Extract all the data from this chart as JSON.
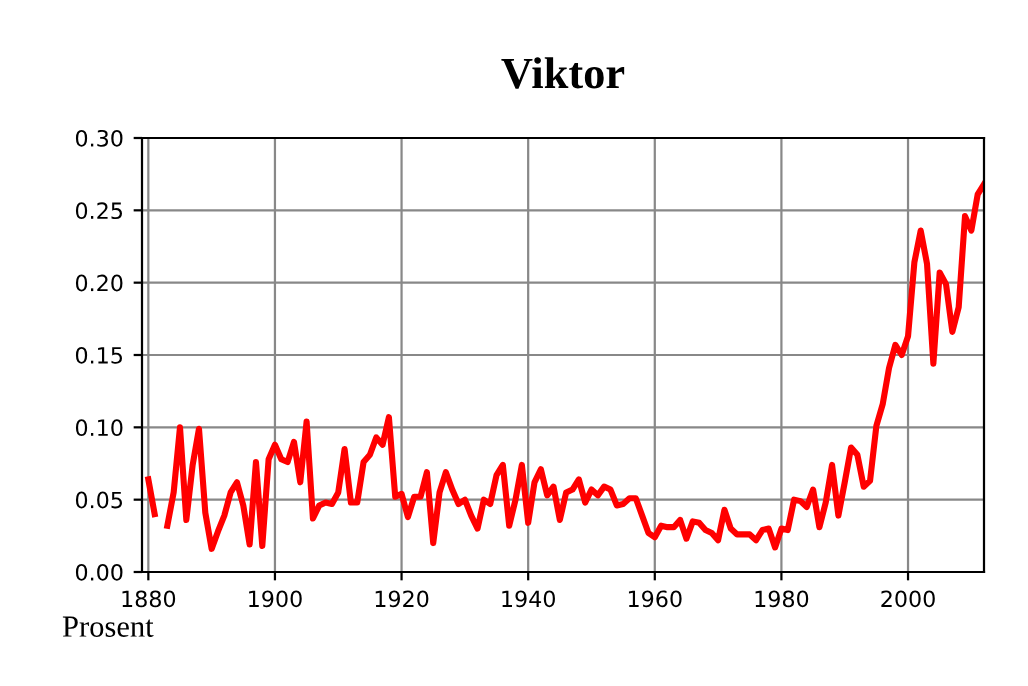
{
  "chart_data": {
    "type": "line",
    "title": "Viktor",
    "ylabel": "Prosent",
    "x": [
      1880,
      1881,
      1882,
      1883,
      1884,
      1885,
      1886,
      1887,
      1888,
      1889,
      1890,
      1891,
      1892,
      1893,
      1894,
      1895,
      1896,
      1897,
      1898,
      1899,
      1900,
      1901,
      1902,
      1903,
      1904,
      1905,
      1906,
      1907,
      1908,
      1909,
      1910,
      1911,
      1912,
      1913,
      1914,
      1915,
      1916,
      1917,
      1918,
      1919,
      1920,
      1921,
      1922,
      1923,
      1924,
      1925,
      1926,
      1927,
      1928,
      1929,
      1930,
      1931,
      1932,
      1933,
      1934,
      1935,
      1936,
      1937,
      1938,
      1939,
      1940,
      1941,
      1942,
      1943,
      1944,
      1945,
      1946,
      1947,
      1948,
      1949,
      1950,
      1951,
      1952,
      1953,
      1954,
      1955,
      1956,
      1957,
      1958,
      1959,
      1960,
      1961,
      1962,
      1963,
      1964,
      1965,
      1966,
      1967,
      1968,
      1969,
      1970,
      1971,
      1972,
      1973,
      1974,
      1975,
      1976,
      1977,
      1978,
      1979,
      1980,
      1981,
      1982,
      1983,
      1984,
      1985,
      1986,
      1987,
      1988,
      1989,
      1990,
      1991,
      1992,
      1993,
      1994,
      1995,
      1996,
      1997,
      1998,
      1999,
      2000,
      2001,
      2002,
      2003,
      2004,
      2005,
      2006,
      2007,
      2008,
      2009,
      2010,
      2011,
      2012
    ],
    "series": [
      {
        "color": "#ff0000",
        "values": [
          0.064,
          0.04,
          null,
          0.032,
          0.055,
          0.1,
          0.036,
          0.074,
          0.099,
          0.041,
          0.016,
          0.028,
          0.039,
          0.055,
          0.062,
          0.046,
          0.019,
          0.076,
          0.018,
          0.078,
          0.088,
          0.078,
          0.076,
          0.09,
          0.062,
          0.104,
          0.037,
          0.046,
          0.048,
          0.047,
          0.055,
          0.085,
          0.048,
          0.048,
          0.076,
          0.081,
          0.093,
          0.088,
          0.107,
          0.052,
          0.054,
          0.038,
          0.052,
          0.052,
          0.069,
          0.02,
          0.055,
          0.069,
          0.057,
          0.047,
          0.05,
          0.039,
          0.03,
          0.05,
          0.047,
          0.067,
          0.074,
          0.032,
          0.05,
          0.074,
          0.034,
          0.062,
          0.071,
          0.053,
          0.059,
          0.036,
          0.055,
          0.057,
          0.064,
          0.048,
          0.057,
          0.053,
          0.059,
          0.057,
          0.046,
          0.047,
          0.051,
          0.051,
          0.039,
          0.027,
          0.024,
          0.032,
          0.031,
          0.031,
          0.036,
          0.023,
          0.035,
          0.034,
          0.029,
          0.027,
          0.022,
          0.043,
          0.03,
          0.026,
          0.026,
          0.026,
          0.022,
          0.029,
          0.03,
          0.017,
          0.03,
          0.029,
          0.05,
          0.049,
          0.045,
          0.057,
          0.031,
          0.048,
          0.074,
          0.039,
          0.062,
          0.086,
          0.081,
          0.059,
          0.063,
          0.101,
          0.116,
          0.141,
          0.157,
          0.15,
          0.163,
          0.214,
          0.236,
          0.213,
          0.144,
          0.207,
          0.199,
          0.166,
          0.183,
          0.246,
          0.236,
          0.261,
          0.268
        ]
      }
    ],
    "xlim": [
      1879,
      2012
    ],
    "ylim": [
      0,
      0.3
    ],
    "xticks": [
      1880,
      1900,
      1920,
      1940,
      1960,
      1980,
      2000
    ],
    "yticks": [
      {
        "value": 0,
        "label": "0.00"
      },
      {
        "value": 0.05,
        "label": "0.05"
      },
      {
        "value": 0.1,
        "label": "0.10"
      },
      {
        "value": 0.15,
        "label": "0.15"
      },
      {
        "value": 0.2,
        "label": "0.20"
      },
      {
        "value": 0.25,
        "label": "0.25"
      },
      {
        "value": 0.3,
        "label": "0.30"
      }
    ],
    "grid": true,
    "legend": false,
    "marker": "none",
    "line_style": "solid"
  }
}
